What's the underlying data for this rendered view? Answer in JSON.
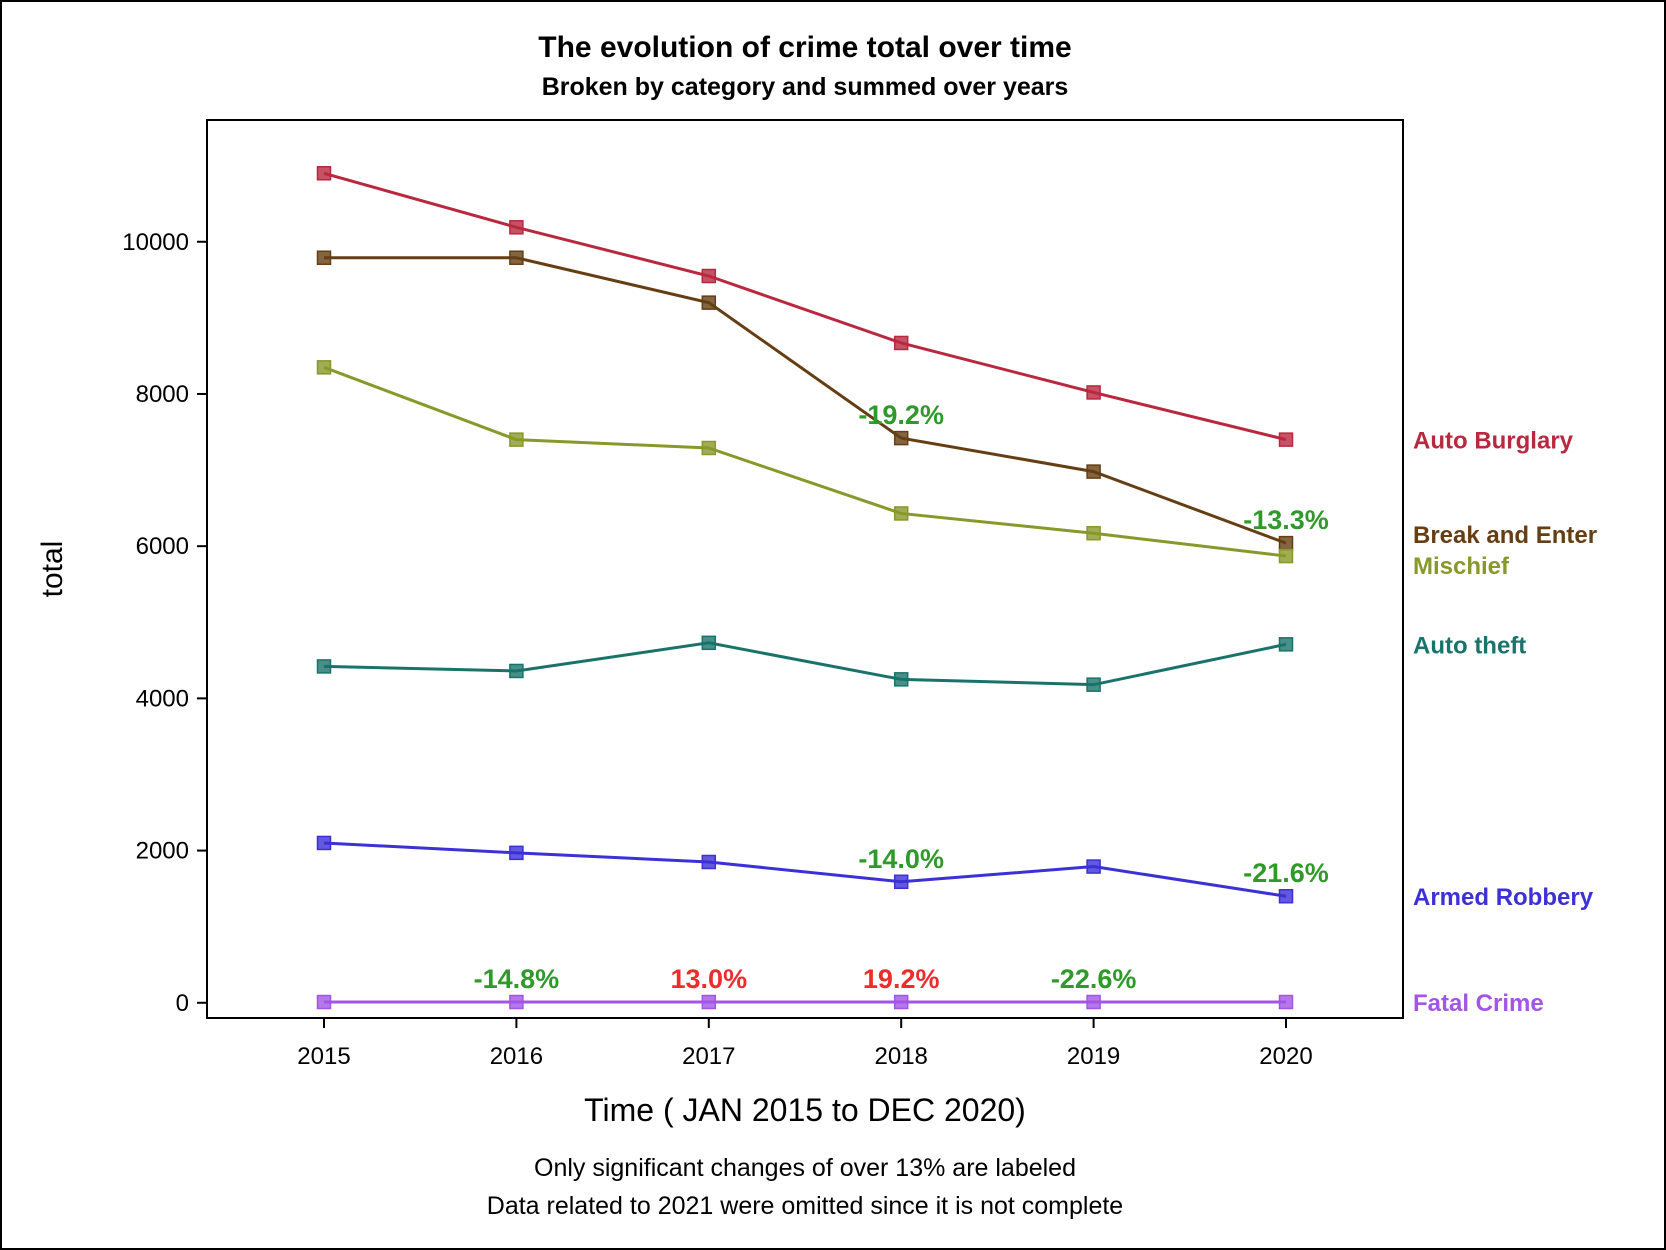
{
  "chart_data": {
    "type": "line",
    "title": "The evolution of crime total over time",
    "subtitle": "Broken by category and summed over years",
    "xlabel": "Time ( JAN 2015 to DEC 2020)",
    "ylabel": "total",
    "x": [
      "2015",
      "2016",
      "2017",
      "2018",
      "2019",
      "2020"
    ],
    "ylim": [
      -200,
      11600
    ],
    "yticks": [
      0,
      2000,
      4000,
      6000,
      8000,
      10000
    ],
    "grid": false,
    "legend": "right, labels at line ends",
    "series": [
      {
        "name": "Auto Burglary",
        "color": "#b8283f",
        "values": [
          10900,
          10190,
          9550,
          8670,
          8020,
          7400
        ]
      },
      {
        "name": "Break and Enter",
        "color": "#653e14",
        "values": [
          9790,
          9790,
          9200,
          7420,
          6980,
          6040
        ]
      },
      {
        "name": "Mischief",
        "color": "#88982a",
        "values": [
          8350,
          7400,
          7290,
          6430,
          6170,
          5870
        ]
      },
      {
        "name": "Auto theft",
        "color": "#19736a",
        "values": [
          4420,
          4360,
          4730,
          4250,
          4180,
          4710
        ]
      },
      {
        "name": "Armed Robbery",
        "color": "#3c30d6",
        "values": [
          2100,
          1970,
          1850,
          1590,
          1790,
          1400
        ]
      },
      {
        "name": "Fatal Crime",
        "color": "#a255e6",
        "values": [
          10,
          10,
          10,
          10,
          10,
          10
        ]
      }
    ],
    "annotations": [
      {
        "text": "-19.2%",
        "x": "2018",
        "y": 7420,
        "color": "#2f9a2a"
      },
      {
        "text": "-13.3%",
        "x": "2020",
        "y": 6040,
        "color": "#2f9a2a"
      },
      {
        "text": "-14.0%",
        "x": "2018",
        "y": 1590,
        "color": "#2f9a2a"
      },
      {
        "text": "-21.6%",
        "x": "2020",
        "y": 1400,
        "color": "#2f9a2a"
      },
      {
        "text": "-14.8%",
        "x": "2016",
        "y": 10,
        "color": "#2f9a2a"
      },
      {
        "text": "13.0%",
        "x": "2017",
        "y": 10,
        "color": "#ee2c2c"
      },
      {
        "text": "19.2%",
        "x": "2018",
        "y": 10,
        "color": "#ee2c2c"
      },
      {
        "text": "-22.6%",
        "x": "2019",
        "y": 10,
        "color": "#2f9a2a"
      }
    ],
    "footnotes": [
      "Only significant changes of over 13% are labeled",
      "Data related to 2021 were omitted since it is not complete"
    ]
  }
}
